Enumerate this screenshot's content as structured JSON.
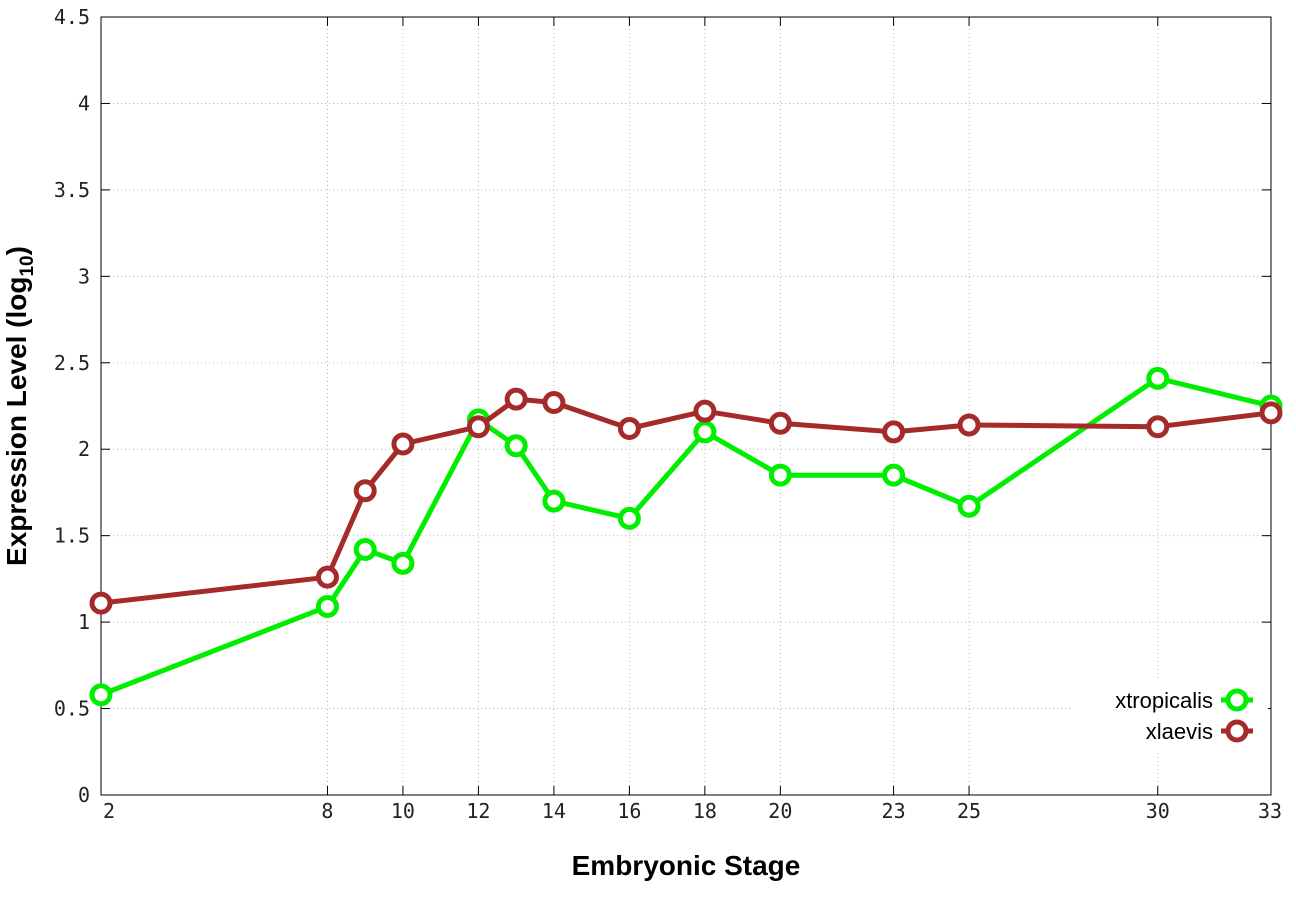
{
  "chart_data": {
    "type": "line",
    "title": "",
    "xlabel": "Embryonic Stage",
    "ylabel": {
      "prefix": "Expression Level (log",
      "subscript": "10",
      "suffix": ")"
    },
    "xlim": [
      2,
      33
    ],
    "ylim": [
      0,
      4.5
    ],
    "x_ticks": [
      2,
      8,
      10,
      12,
      14,
      16,
      18,
      20,
      23,
      25,
      30,
      33
    ],
    "y_ticks": [
      0,
      0.5,
      1,
      1.5,
      2,
      2.5,
      3,
      3.5,
      4,
      4.5
    ],
    "y_tick_labels": [
      "0",
      "0.5",
      "1",
      "1.5",
      "2",
      "2.5",
      "3",
      "3.5",
      "4",
      "4.5"
    ],
    "x_positions": [
      2,
      8,
      9,
      10,
      12,
      13,
      14,
      16,
      18,
      20,
      23,
      25,
      30,
      33
    ],
    "grid": true,
    "legend_position": "bottom-right",
    "series": [
      {
        "name": "xtropicalis",
        "color": "#00ee00",
        "marker": "open-circle",
        "values": [
          0.58,
          1.09,
          1.42,
          1.34,
          2.17,
          2.02,
          1.7,
          1.6,
          2.1,
          1.85,
          1.85,
          1.67,
          2.41,
          2.25
        ]
      },
      {
        "name": "xlaevis",
        "color": "#a52a2a",
        "marker": "open-circle",
        "values": [
          1.11,
          1.26,
          1.76,
          2.03,
          2.13,
          2.29,
          2.27,
          2.12,
          2.22,
          2.15,
          2.1,
          2.14,
          2.13,
          2.21
        ]
      }
    ]
  }
}
